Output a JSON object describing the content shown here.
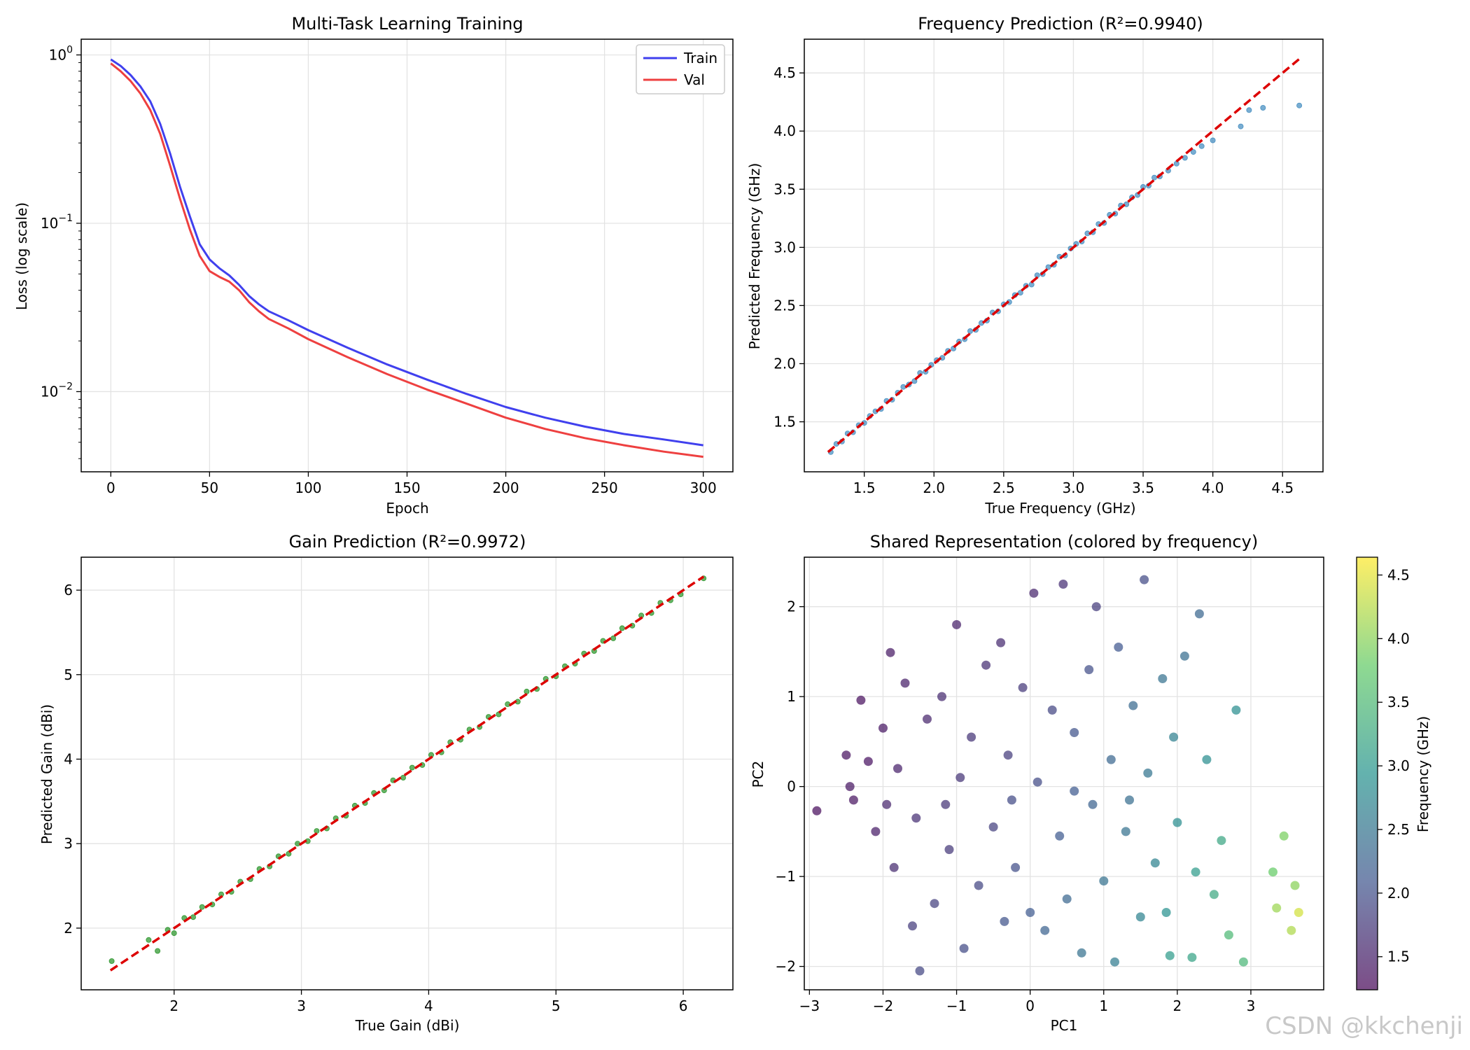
{
  "watermark": "CSDN @kkchenji",
  "chart_data": [
    {
      "id": "loss",
      "type": "line",
      "title": "Multi-Task Learning Training",
      "xlabel": "Epoch",
      "ylabel": "Loss (log scale)",
      "yscale": "log",
      "xlim": [
        -15,
        315
      ],
      "ylim": [
        0.00334,
        1.24
      ],
      "xticks": [
        0,
        50,
        100,
        150,
        200,
        250,
        300
      ],
      "yticks": [
        {
          "value": 1,
          "base": "10",
          "exp": "0"
        },
        {
          "value": 0.1,
          "base": "10",
          "exp": "−1"
        },
        {
          "value": 0.01,
          "base": "10",
          "exp": "−2"
        }
      ],
      "legend": {
        "position": "top-right"
      },
      "series": [
        {
          "name": "Train",
          "color": "#4040ee",
          "x": [
            0,
            5,
            10,
            15,
            20,
            25,
            30,
            35,
            40,
            45,
            50,
            55,
            60,
            65,
            70,
            75,
            80,
            90,
            100,
            120,
            140,
            160,
            180,
            200,
            220,
            240,
            260,
            280,
            300
          ],
          "y": [
            0.94,
            0.86,
            0.76,
            0.65,
            0.53,
            0.39,
            0.26,
            0.165,
            0.11,
            0.075,
            0.061,
            0.054,
            0.049,
            0.043,
            0.037,
            0.033,
            0.03,
            0.0265,
            0.0232,
            0.0182,
            0.0145,
            0.0118,
            0.0097,
            0.0081,
            0.007,
            0.0062,
            0.0056,
            0.0052,
            0.0048
          ]
        },
        {
          "name": "Val",
          "color": "#ee4040",
          "x": [
            0,
            5,
            10,
            15,
            20,
            25,
            30,
            35,
            40,
            45,
            50,
            55,
            60,
            65,
            70,
            75,
            80,
            90,
            100,
            120,
            140,
            160,
            180,
            200,
            220,
            240,
            260,
            280,
            300
          ],
          "y": [
            0.89,
            0.8,
            0.7,
            0.59,
            0.47,
            0.34,
            0.22,
            0.14,
            0.092,
            0.064,
            0.052,
            0.048,
            0.045,
            0.04,
            0.034,
            0.03,
            0.027,
            0.0237,
            0.0205,
            0.016,
            0.0127,
            0.0103,
            0.0085,
            0.007,
            0.006,
            0.0053,
            0.0048,
            0.0044,
            0.0041
          ]
        }
      ]
    },
    {
      "id": "freq",
      "type": "scatter",
      "title": "Frequency Prediction (R²=0.9940)",
      "xlabel": "True Frequency (GHz)",
      "ylabel": "Predicted Frequency (GHz)",
      "xlim": [
        1.07,
        4.79
      ],
      "ylim": [
        1.07,
        4.79
      ],
      "xticks": [
        "1.5",
        "2.0",
        "2.5",
        "3.0",
        "3.5",
        "4.0",
        "4.5"
      ],
      "yticks": [
        "1.5",
        "2.0",
        "2.5",
        "3.0",
        "3.5",
        "4.0",
        "4.5"
      ],
      "point_color": "#1f77b4",
      "reference_line": {
        "x": [
          1.24,
          4.62
        ],
        "y": [
          1.24,
          4.62
        ],
        "color": "#dd0000",
        "style": "dashed"
      },
      "x": [
        1.26,
        1.3,
        1.34,
        1.38,
        1.42,
        1.46,
        1.5,
        1.54,
        1.58,
        1.62,
        1.66,
        1.7,
        1.74,
        1.78,
        1.82,
        1.86,
        1.9,
        1.94,
        1.98,
        2.02,
        2.06,
        2.1,
        2.14,
        2.18,
        2.22,
        2.26,
        2.3,
        2.34,
        2.38,
        2.42,
        2.46,
        2.5,
        2.54,
        2.58,
        2.62,
        2.66,
        2.7,
        2.74,
        2.78,
        2.82,
        2.86,
        2.9,
        2.94,
        2.98,
        3.02,
        3.06,
        3.1,
        3.14,
        3.18,
        3.22,
        3.26,
        3.3,
        3.34,
        3.38,
        3.42,
        3.46,
        3.5,
        3.54,
        3.58,
        3.62,
        3.68,
        3.74,
        3.8,
        3.86,
        3.92,
        4.0,
        4.2,
        4.26,
        4.36,
        4.62
      ],
      "y": [
        1.24,
        1.31,
        1.33,
        1.4,
        1.41,
        1.47,
        1.49,
        1.55,
        1.59,
        1.61,
        1.68,
        1.69,
        1.75,
        1.8,
        1.82,
        1.85,
        1.92,
        1.93,
        1.99,
        2.03,
        2.05,
        2.11,
        2.13,
        2.19,
        2.21,
        2.28,
        2.29,
        2.35,
        2.37,
        2.44,
        2.45,
        2.51,
        2.53,
        2.59,
        2.61,
        2.67,
        2.68,
        2.76,
        2.77,
        2.83,
        2.85,
        2.92,
        2.93,
        2.99,
        3.03,
        3.05,
        3.12,
        3.13,
        3.2,
        3.21,
        3.28,
        3.29,
        3.36,
        3.37,
        3.43,
        3.45,
        3.52,
        3.53,
        3.6,
        3.61,
        3.66,
        3.72,
        3.77,
        3.82,
        3.87,
        3.92,
        4.04,
        4.18,
        4.2,
        4.22
      ]
    },
    {
      "id": "gain",
      "type": "scatter",
      "title": "Gain Prediction (R²=0.9972)",
      "xlabel": "True Gain (dBi)",
      "ylabel": "Predicted Gain (dBi)",
      "xlim": [
        1.27,
        6.39
      ],
      "ylim": [
        1.27,
        6.39
      ],
      "xticks": [
        "2",
        "3",
        "4",
        "5",
        "6"
      ],
      "yticks": [
        "2",
        "3",
        "4",
        "5",
        "6"
      ],
      "point_color": "#008000",
      "reference_line": {
        "x": [
          1.5,
          6.16
        ],
        "y": [
          1.5,
          6.16
        ],
        "color": "#dd0000",
        "style": "dashed"
      },
      "x": [
        1.51,
        1.8,
        1.87,
        1.95,
        2.0,
        2.08,
        2.15,
        2.22,
        2.3,
        2.37,
        2.45,
        2.52,
        2.6,
        2.67,
        2.75,
        2.82,
        2.9,
        2.97,
        3.05,
        3.12,
        3.2,
        3.27,
        3.35,
        3.42,
        3.5,
        3.57,
        3.65,
        3.72,
        3.8,
        3.87,
        3.95,
        4.02,
        4.1,
        4.17,
        4.25,
        4.32,
        4.4,
        4.47,
        4.55,
        4.62,
        4.7,
        4.77,
        4.85,
        4.92,
        5.0,
        5.07,
        5.15,
        5.22,
        5.3,
        5.37,
        5.45,
        5.52,
        5.6,
        5.67,
        5.75,
        5.82,
        5.9,
        5.98,
        6.16
      ],
      "y": [
        1.61,
        1.86,
        1.73,
        1.98,
        1.94,
        2.12,
        2.13,
        2.25,
        2.28,
        2.4,
        2.43,
        2.55,
        2.58,
        2.7,
        2.73,
        2.85,
        2.88,
        3.0,
        3.03,
        3.15,
        3.18,
        3.3,
        3.33,
        3.45,
        3.48,
        3.6,
        3.63,
        3.75,
        3.78,
        3.9,
        3.93,
        4.05,
        4.08,
        4.2,
        4.23,
        4.35,
        4.38,
        4.5,
        4.53,
        4.65,
        4.68,
        4.8,
        4.83,
        4.95,
        4.98,
        5.1,
        5.13,
        5.25,
        5.28,
        5.4,
        5.43,
        5.55,
        5.58,
        5.7,
        5.73,
        5.85,
        5.88,
        5.95,
        6.14
      ]
    },
    {
      "id": "pca",
      "type": "scatter",
      "title": "Shared Representation (colored by frequency)",
      "xlabel": "PC1",
      "ylabel": "PC2",
      "xlim": [
        -3.07,
        3.99
      ],
      "ylim": [
        -2.26,
        2.55
      ],
      "xticks": [
        {
          "value": -3,
          "label": "−3"
        },
        {
          "value": -2,
          "label": "−2"
        },
        {
          "value": -1,
          "label": "−1"
        },
        {
          "value": 0,
          "label": "0"
        },
        {
          "value": 1,
          "label": "1"
        },
        {
          "value": 2,
          "label": "2"
        },
        {
          "value": 3,
          "label": "3"
        }
      ],
      "yticks": [
        {
          "value": -2,
          "label": "−2"
        },
        {
          "value": -1,
          "label": "−1"
        },
        {
          "value": 0,
          "label": "0"
        },
        {
          "value": 1,
          "label": "1"
        },
        {
          "value": 2,
          "label": "2"
        }
      ],
      "colorbar": {
        "label": "Frequency (GHz)",
        "range": [
          1.24,
          4.64
        ],
        "ticks": [
          "1.5",
          "2.0",
          "2.5",
          "3.0",
          "3.5",
          "4.0",
          "4.5"
        ],
        "colormap": "viridis"
      },
      "points": [
        [
          -2.9,
          -0.27,
          1.3
        ],
        [
          -2.5,
          0.35,
          1.35
        ],
        [
          -2.4,
          -0.15,
          1.38
        ],
        [
          -2.3,
          0.96,
          1.33
        ],
        [
          -2.2,
          0.28,
          1.36
        ],
        [
          -2.1,
          -0.5,
          1.45
        ],
        [
          -2.0,
          0.65,
          1.4
        ],
        [
          -1.9,
          1.49,
          1.42
        ],
        [
          -1.85,
          -0.9,
          1.6
        ],
        [
          -1.8,
          0.2,
          1.5
        ],
        [
          -1.7,
          1.15,
          1.48
        ],
        [
          -1.6,
          -1.55,
          1.8
        ],
        [
          -1.55,
          -0.35,
          1.65
        ],
        [
          -1.5,
          -2.05,
          1.9
        ],
        [
          -1.4,
          0.75,
          1.55
        ],
        [
          -1.3,
          -1.3,
          1.85
        ],
        [
          -1.2,
          1.0,
          1.6
        ],
        [
          -1.1,
          -0.7,
          1.75
        ],
        [
          -1.0,
          1.8,
          1.5
        ],
        [
          -0.95,
          0.1,
          1.7
        ],
        [
          -0.9,
          -1.8,
          1.95
        ],
        [
          -0.8,
          0.55,
          1.7
        ],
        [
          -0.7,
          -1.1,
          1.9
        ],
        [
          -0.6,
          1.35,
          1.65
        ],
        [
          -0.5,
          -0.45,
          1.85
        ],
        [
          -0.4,
          1.6,
          1.6
        ],
        [
          -0.35,
          -1.5,
          2.05
        ],
        [
          -0.3,
          0.35,
          1.8
        ],
        [
          -0.2,
          -0.9,
          2.0
        ],
        [
          -0.1,
          1.1,
          1.75
        ],
        [
          0.0,
          -1.4,
          2.15
        ],
        [
          0.05,
          2.15,
          1.55
        ],
        [
          0.1,
          0.05,
          1.95
        ],
        [
          0.2,
          -1.6,
          2.25
        ],
        [
          0.3,
          0.85,
          1.9
        ],
        [
          0.4,
          -0.55,
          2.15
        ],
        [
          0.45,
          2.25,
          1.65
        ],
        [
          0.5,
          -1.25,
          2.3
        ],
        [
          0.6,
          0.6,
          2.05
        ],
        [
          0.7,
          -1.85,
          2.45
        ],
        [
          0.8,
          1.3,
          2.0
        ],
        [
          0.85,
          -0.2,
          2.25
        ],
        [
          0.9,
          2.0,
          1.8
        ],
        [
          1.0,
          -1.05,
          2.45
        ],
        [
          1.1,
          0.3,
          2.3
        ],
        [
          1.15,
          -1.95,
          2.6
        ],
        [
          1.2,
          1.55,
          2.1
        ],
        [
          1.3,
          -0.5,
          2.45
        ],
        [
          1.4,
          0.9,
          2.35
        ],
        [
          1.5,
          -1.45,
          2.7
        ],
        [
          1.55,
          2.3,
          1.95
        ],
        [
          1.6,
          0.15,
          2.5
        ],
        [
          1.7,
          -0.85,
          2.7
        ],
        [
          1.8,
          1.2,
          2.45
        ],
        [
          1.85,
          -1.4,
          2.9
        ],
        [
          1.9,
          -1.88,
          3.05
        ],
        [
          1.95,
          0.55,
          2.65
        ],
        [
          2.0,
          -0.4,
          2.85
        ],
        [
          2.1,
          1.45,
          2.4
        ],
        [
          2.2,
          -1.9,
          3.15
        ],
        [
          2.25,
          -0.95,
          3.05
        ],
        [
          2.3,
          1.92,
          2.3
        ],
        [
          2.4,
          0.3,
          2.85
        ],
        [
          2.5,
          -1.2,
          3.25
        ],
        [
          2.6,
          -0.6,
          3.2
        ],
        [
          2.7,
          -1.65,
          3.5
        ],
        [
          2.8,
          0.85,
          2.85
        ],
        [
          2.9,
          -1.95,
          3.45
        ],
        [
          3.3,
          -0.95,
          3.8
        ],
        [
          3.35,
          -1.35,
          4.1
        ],
        [
          3.45,
          -0.55,
          3.9
        ],
        [
          3.55,
          -1.6,
          4.2
        ],
        [
          3.6,
          -1.1,
          4.0
        ],
        [
          3.65,
          -1.4,
          4.4
        ],
        [
          -2.45,
          0.0,
          1.4
        ],
        [
          -1.95,
          -0.2,
          1.55
        ],
        [
          -1.15,
          -0.2,
          1.7
        ],
        [
          -0.25,
          -0.15,
          1.95
        ],
        [
          0.6,
          -0.05,
          2.15
        ],
        [
          1.35,
          -0.15,
          2.4
        ]
      ]
    }
  ]
}
